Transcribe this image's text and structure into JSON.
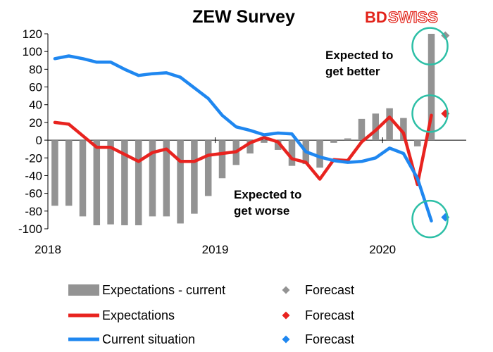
{
  "chart_data": {
    "type": "bar",
    "title": "ZEW Survey",
    "logo": {
      "bd": "BD",
      "swiss": "SWISS"
    },
    "ylim": [
      -100,
      120
    ],
    "yticks": [
      120,
      100,
      80,
      60,
      40,
      20,
      0,
      -20,
      -40,
      -60,
      -80,
      -100
    ],
    "x_tick_labels": [
      "2018",
      "2019",
      "2020"
    ],
    "x_range": [
      "2018-01",
      "2020-06"
    ],
    "grid": false,
    "legend_position": "bottom",
    "series": [
      {
        "name": "Expectations - current",
        "type": "bar",
        "color": "#939393",
        "x": [
          "2018-01",
          "2018-02",
          "2018-03",
          "2018-04",
          "2018-05",
          "2018-06",
          "2018-07",
          "2018-08",
          "2018-09",
          "2018-10",
          "2018-11",
          "2018-12",
          "2019-01",
          "2019-02",
          "2019-03",
          "2019-04",
          "2019-05",
          "2019-06",
          "2019-07",
          "2019-08",
          "2019-09",
          "2019-10",
          "2019-11",
          "2019-12",
          "2020-01",
          "2020-02",
          "2020-03",
          "2020-04"
        ],
        "values": [
          -74,
          -74,
          -86,
          -96,
          -95,
          -96,
          -96,
          -86,
          -86,
          -94,
          -83,
          -63,
          -43,
          -28,
          -15,
          -3,
          -11,
          -29,
          -27,
          -31,
          -3,
          2,
          24,
          30,
          36,
          25,
          -7,
          120
        ]
      },
      {
        "name": "Expectations",
        "type": "line",
        "color": "#e8231f",
        "x": [
          "2018-01",
          "2018-02",
          "2018-03",
          "2018-04",
          "2018-05",
          "2018-06",
          "2018-07",
          "2018-08",
          "2018-09",
          "2018-10",
          "2018-11",
          "2018-12",
          "2019-01",
          "2019-02",
          "2019-03",
          "2019-04",
          "2019-05",
          "2019-06",
          "2019-07",
          "2019-08",
          "2019-09",
          "2019-10",
          "2019-11",
          "2019-12",
          "2020-01",
          "2020-02",
          "2020-03",
          "2020-04"
        ],
        "values": [
          20,
          18,
          5,
          -8,
          -8,
          -16,
          -24,
          -14,
          -10,
          -24,
          -24,
          -17,
          -15,
          -13,
          -3,
          3,
          -2,
          -21,
          -25,
          -44,
          -22,
          -23,
          -2,
          11,
          26,
          8,
          -50,
          28
        ]
      },
      {
        "name": "Current situation",
        "type": "line",
        "color": "#1f87f0",
        "x": [
          "2018-01",
          "2018-02",
          "2018-03",
          "2018-04",
          "2018-05",
          "2018-06",
          "2018-07",
          "2018-08",
          "2018-09",
          "2018-10",
          "2018-11",
          "2018-12",
          "2019-01",
          "2019-02",
          "2019-03",
          "2019-04",
          "2019-05",
          "2019-06",
          "2019-07",
          "2019-08",
          "2019-09",
          "2019-10",
          "2019-11",
          "2019-12",
          "2020-01",
          "2020-02",
          "2020-03",
          "2020-04"
        ],
        "values": [
          92,
          95,
          92,
          88,
          88,
          80,
          73,
          75,
          76,
          71,
          59,
          47,
          28,
          15,
          11,
          6,
          8,
          7,
          -13,
          -19,
          -23,
          -25,
          -24,
          -20,
          -9,
          -15,
          -43,
          -91
        ]
      }
    ],
    "forecasts": [
      {
        "name": "Forecast",
        "x": "2020-05",
        "value": 118,
        "color": "#939393"
      },
      {
        "name": "Forecast",
        "x": "2020-05",
        "value": 30,
        "color": "#e8231f"
      },
      {
        "name": "Forecast",
        "x": "2020-05",
        "value": -87,
        "color": "#1f87f0"
      }
    ],
    "annotations": [
      {
        "lines": [
          "Expected to",
          "get better"
        ]
      },
      {
        "lines": [
          "Expected to",
          "get worse"
        ]
      }
    ],
    "highlight_color": "#2dbfa6",
    "legend": [
      {
        "label": "Expectations - current",
        "marker": "bar",
        "color": "#939393"
      },
      {
        "label": "Forecast",
        "marker": "diamond",
        "color": "#939393"
      },
      {
        "label": "Expectations",
        "marker": "line",
        "color": "#e8231f"
      },
      {
        "label": "Forecast",
        "marker": "diamond",
        "color": "#e8231f"
      },
      {
        "label": "Current situation",
        "marker": "line",
        "color": "#1f87f0"
      },
      {
        "label": "Forecast",
        "marker": "diamond",
        "color": "#1f87f0"
      }
    ]
  }
}
